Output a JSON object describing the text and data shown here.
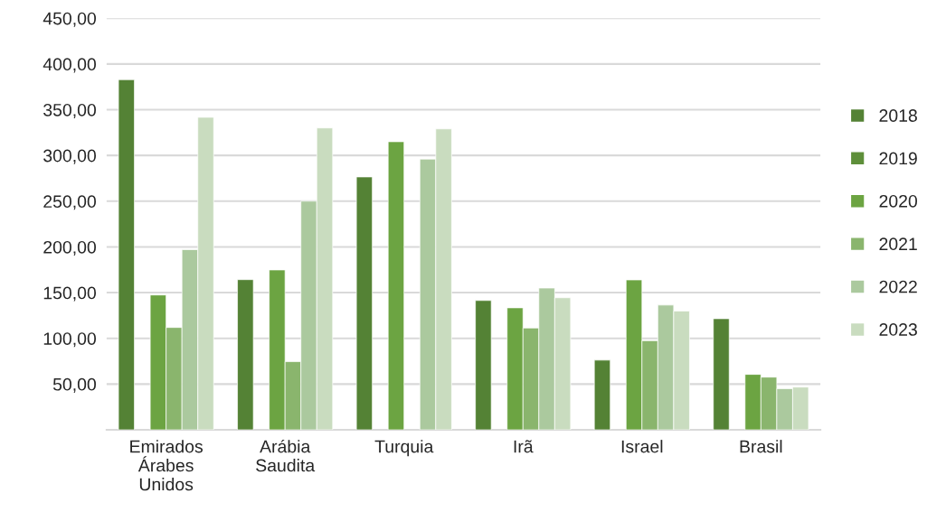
{
  "chart_data": {
    "type": "bar",
    "categories": [
      "Emirados\nÁrabes\nUnidos",
      "Arábia\nSaudita",
      "Turquia",
      "Irã",
      "Israel",
      "Brasil"
    ],
    "series": [
      {
        "name": "2018",
        "color": "#548235",
        "values": [
          382.8,
          164.2,
          276.5,
          141.4,
          76.2,
          121.5
        ]
      },
      {
        "name": "2019",
        "color": "#5e8f3a",
        "values": [
          null,
          null,
          null,
          null,
          null,
          null
        ]
      },
      {
        "name": "2020",
        "color": "#6ca442",
        "values": [
          147.4,
          174.8,
          315,
          133.4,
          163.9,
          60.6
        ]
      },
      {
        "name": "2021",
        "color": "#8ab56d",
        "values": [
          111.9,
          74.5,
          null,
          111.3,
          97.4,
          57.6
        ]
      },
      {
        "name": "2022",
        "color": "#abc99e",
        "values": [
          197,
          250,
          296,
          155,
          136.4,
          45
        ]
      },
      {
        "name": "2023",
        "color": "#c9dcbf",
        "values": [
          341.7,
          330,
          329,
          144.4,
          129.8,
          46.7
        ]
      }
    ],
    "ylim": [
      0,
      450
    ],
    "yticks": [
      {
        "value": 50,
        "label": "50,00"
      },
      {
        "value": 100,
        "label": "100,00"
      },
      {
        "value": 150,
        "label": "150,00"
      },
      {
        "value": 200,
        "label": "200,00"
      },
      {
        "value": 250,
        "label": "250,00"
      },
      {
        "value": 300,
        "label": "300,00"
      },
      {
        "value": 350,
        "label": "350,00"
      },
      {
        "value": 400,
        "label": "400,00"
      },
      {
        "value": 450,
        "label": "450,00"
      }
    ],
    "grid": "y",
    "legend": "right"
  }
}
